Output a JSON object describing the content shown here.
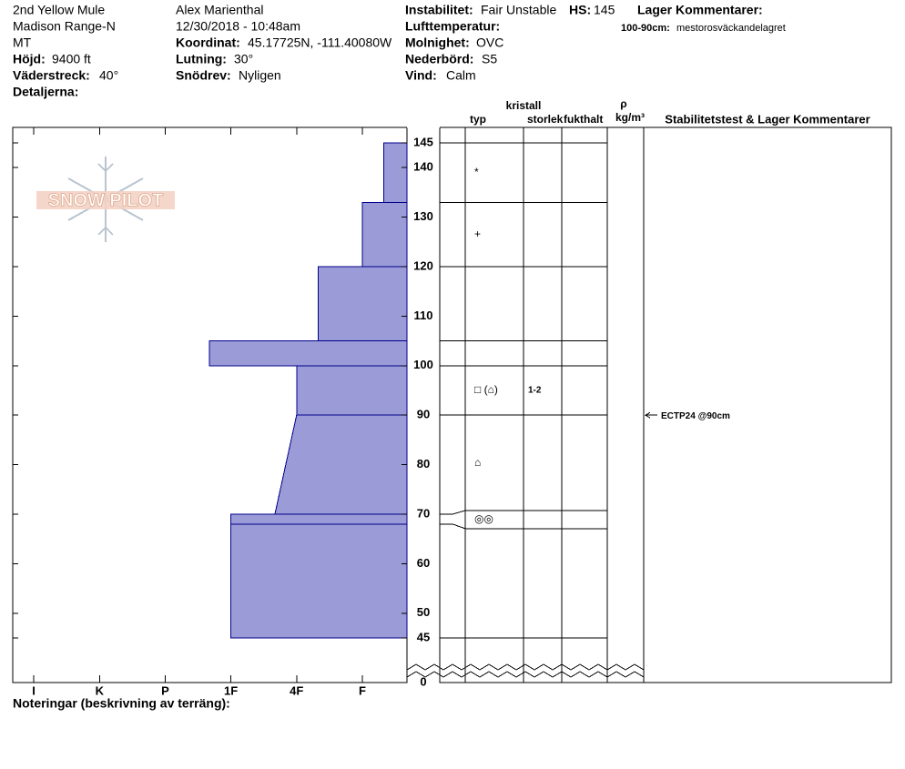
{
  "header": {
    "site": "2nd Yellow Mule",
    "range": "Madison Range-N",
    "state": "MT",
    "elevation_label": "Höjd:",
    "elevation": "9400 ft",
    "aspect_label": "Väderstreck:",
    "aspect": "40°",
    "details_label": "Detaljerna:",
    "observer": "Alex Marienthal",
    "datetime": "12/30/2018 - 10:48am",
    "coord_label": "Koordinat:",
    "coord": "45.17725N, -111.40080W",
    "slope_label": "Lutning:",
    "slope": "30°",
    "wind_loading_label": "Snödrev:",
    "wind_loading": "Nyligen",
    "instability_label": "Instabilitet:",
    "instability": "Fair Unstable",
    "hs_label": "HS:",
    "hs": "145",
    "air_temp_label": "Lufttemperatur:",
    "sky_label": "Molnighet:",
    "sky": "OVC",
    "precip_label": "Nederbörd:",
    "precip": "S5",
    "wind_label": "Vind:",
    "wind": "Calm",
    "layer_comments_label": "Lager Kommentarer:",
    "layer_comment_range": "100-90cm:",
    "layer_comment": "mestorosväckandelagret"
  },
  "logo": "SNOW PILOT",
  "profile": {
    "depth_ticks": [
      145,
      140,
      130,
      120,
      110,
      100,
      90,
      80,
      70,
      60,
      50,
      45,
      0
    ],
    "hardness_ticks": [
      {
        "value": 0,
        "label": "I"
      },
      {
        "value": 1,
        "label": "K"
      },
      {
        "value": 2,
        "label": "P"
      },
      {
        "value": 3,
        "label": "1F"
      },
      {
        "value": 4,
        "label": "4F"
      },
      {
        "value": 5,
        "label": "F"
      }
    ],
    "hardness_lim": [
      -0.32,
      5.68
    ],
    "layers": [
      {
        "top": 145,
        "bottom": 133,
        "hardness_top": 5.33,
        "hardness_bottom": 5.33,
        "grain": "*"
      },
      {
        "top": 133,
        "bottom": 120,
        "hardness_top": 5,
        "hardness_bottom": 5,
        "grain": "+"
      },
      {
        "top": 120,
        "bottom": 105,
        "hardness_top": 4.33,
        "hardness_bottom": 4.33
      },
      {
        "top": 105,
        "bottom": 100,
        "hardness_top": 2.67,
        "hardness_bottom": 2.67
      },
      {
        "top": 100,
        "bottom": 90,
        "hardness_top": 4,
        "hardness_bottom": 4,
        "grain": "□ (⌂)",
        "size": "1-2"
      },
      {
        "top": 90,
        "bottom": 70,
        "hardness_top": 4,
        "hardness_bottom": 3.67,
        "grain": "⌂"
      },
      {
        "top": 70,
        "bottom": 68,
        "hardness_top": 3,
        "hardness_bottom": 3,
        "grain": "◎◎"
      },
      {
        "top": 68,
        "bottom": 45,
        "hardness_top": 3,
        "hardness_bottom": 3
      }
    ]
  },
  "table_headers": {
    "type": "typ",
    "crystal": "kristall",
    "size": "storlek",
    "moisture": "fukthalt",
    "rho": "ρ",
    "density_unit": "kg/m³",
    "comments": "Stabilitetstest & Lager Kommentarer"
  },
  "stability_test": {
    "label": "ECTP24 @90cm",
    "depth": 90
  },
  "notes_label": "Noteringar (beskrivning av terräng):"
}
